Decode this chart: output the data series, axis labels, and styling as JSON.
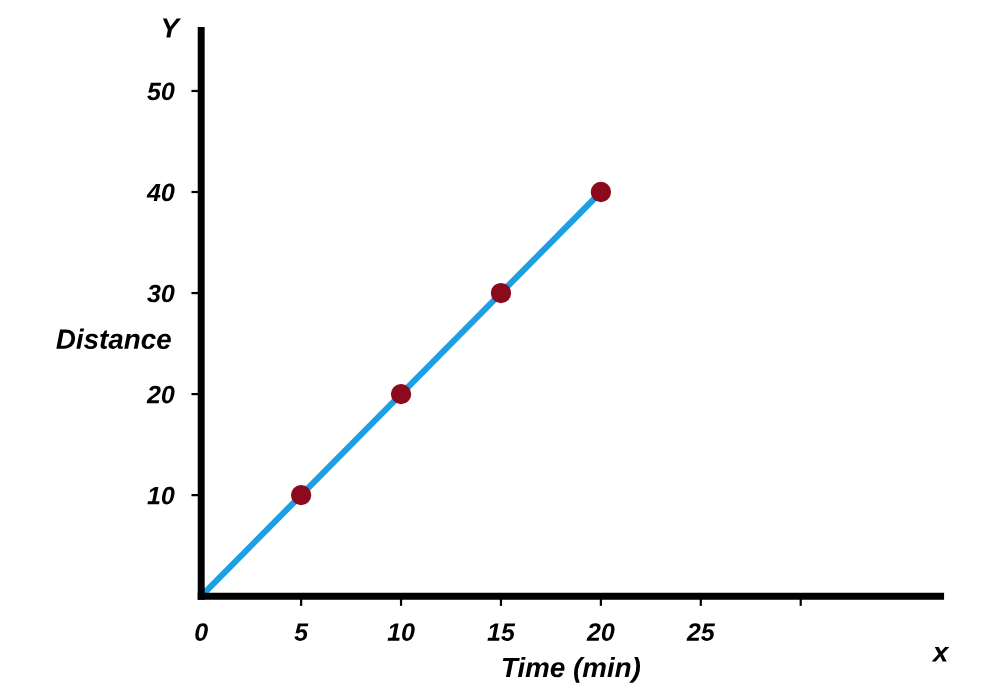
{
  "chart_data": {
    "type": "line",
    "xlabel": "Time (min)",
    "ylabel": "Distance",
    "annotations": [
      "Y",
      "x"
    ],
    "series": [
      {
        "color": "#1e9fe3",
        "x": [
          0,
          5,
          10,
          15,
          20
        ],
        "values": [
          0,
          10,
          20,
          30,
          40
        ],
        "marker": "none"
      },
      {
        "type": "scatter",
        "color": "#8b0a1e",
        "x": [
          5,
          10,
          15,
          20
        ],
        "values": [
          10,
          20,
          30,
          40
        ],
        "marker": "circle"
      }
    ],
    "xlim": [
      0,
      37
    ],
    "ylim": [
      0,
      56
    ],
    "xticks": [
      0,
      5,
      10,
      15,
      20,
      25,
      {
        "value": 30,
        "label": null
      }
    ],
    "yticks": [
      10,
      20,
      30,
      40,
      50
    ],
    "grid": false
  }
}
